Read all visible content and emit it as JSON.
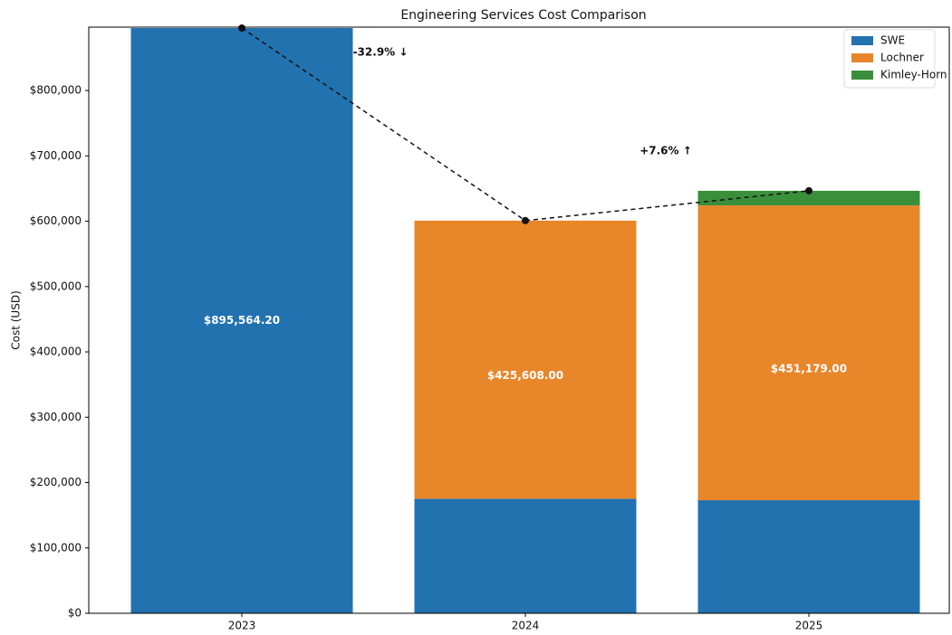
{
  "chart_data": {
    "type": "bar",
    "stacked": true,
    "title": "Engineering Services Cost Comparison",
    "y_label": "Cost (USD)",
    "categories": [
      "2023",
      "2024",
      "2025"
    ],
    "series": [
      {
        "name": "SWE",
        "color": "#2272b0",
        "values": [
          895564.2,
          175300,
          173000
        ],
        "value_labels": [
          "$895,564.20",
          null,
          null
        ]
      },
      {
        "name": "Lochner",
        "color": "#e8862a",
        "values": [
          0,
          425608,
          451179
        ],
        "value_labels": [
          null,
          "$425,608.00",
          "$451,179.00"
        ]
      },
      {
        "name": "Kimley-Horn",
        "color": "#3a8f3a",
        "values": [
          0,
          0,
          22400
        ]
      }
    ],
    "annotations": [
      "-32.9% ↓",
      "+7.6% ↑"
    ],
    "ylim": [
      0,
      897000
    ],
    "yticks": [
      {
        "value": 0,
        "label": "$0"
      },
      {
        "value": 100000,
        "label": "$100,000"
      },
      {
        "value": 200000,
        "label": "$200,000"
      },
      {
        "value": 300000,
        "label": "$300,000"
      },
      {
        "value": 400000,
        "label": "$400,000"
      },
      {
        "value": 500000,
        "label": "$500,000"
      },
      {
        "value": 600000,
        "label": "$600,000"
      },
      {
        "value": 700000,
        "label": "$700,000"
      },
      {
        "value": 800000,
        "label": "$800,000"
      }
    ],
    "legend": "upper right"
  }
}
